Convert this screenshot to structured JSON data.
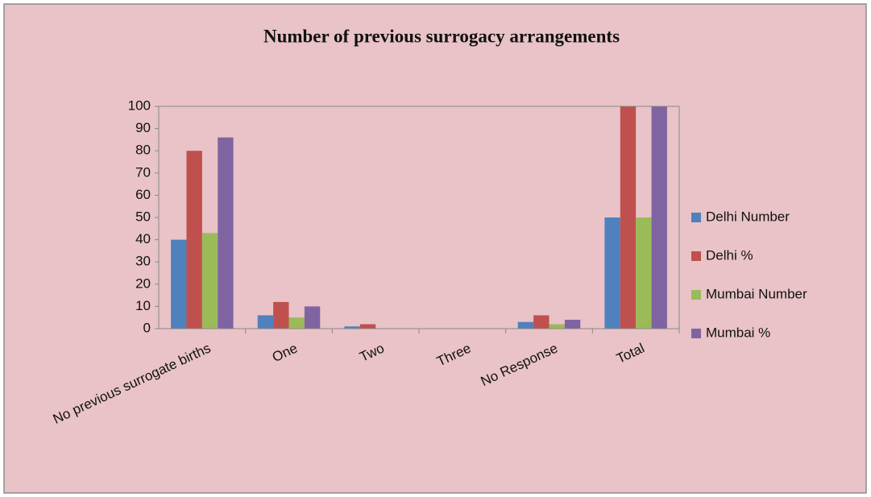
{
  "chart_data": {
    "type": "bar",
    "title": "Number of previous surrogacy arrangements",
    "categories": [
      "No previous surrogate births",
      "One",
      "Two",
      "Three",
      "No Response",
      "Total"
    ],
    "series": [
      {
        "name": "Delhi Number",
        "color": "#4f81bd",
        "values": [
          40,
          6,
          1,
          0,
          3,
          50
        ]
      },
      {
        "name": "Delhi %",
        "color": "#c0504d",
        "values": [
          80,
          12,
          2,
          0,
          6,
          100
        ]
      },
      {
        "name": "Mumbai Number",
        "color": "#9bbb59",
        "values": [
          43,
          5,
          0,
          0,
          2,
          50
        ]
      },
      {
        "name": "Mumbai %",
        "color": "#8064a2",
        "values": [
          86,
          10,
          0,
          0,
          4,
          100
        ]
      }
    ],
    "ylim": [
      0,
      100
    ],
    "yticks": [
      0,
      10,
      20,
      30,
      40,
      50,
      60,
      70,
      80,
      90,
      100
    ],
    "legend": "right"
  }
}
